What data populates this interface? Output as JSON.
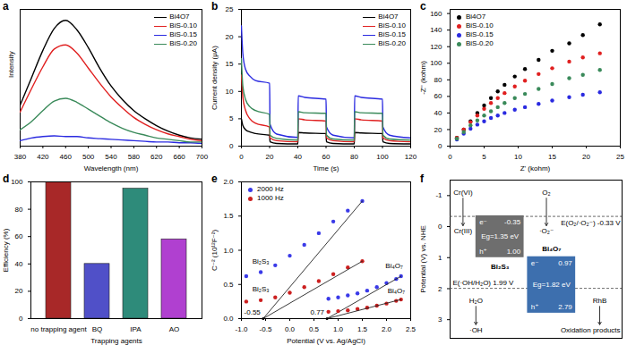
{
  "chart_data": [
    {
      "panel": "a",
      "type": "line",
      "x_label": "Wavelength (nm)",
      "y_label": "Intensity",
      "xlim": [
        380,
        700
      ],
      "xticks": [
        380,
        420,
        460,
        500,
        540,
        580,
        620,
        660,
        700
      ],
      "ylim": [
        0,
        100
      ],
      "tick_labels": "x",
      "legend": "top-right",
      "x": [
        380,
        400,
        420,
        440,
        460,
        480,
        500,
        520,
        540,
        560,
        580,
        600,
        620,
        640,
        660,
        680,
        700
      ],
      "series": [
        {
          "name": "Bi4O7",
          "color": "#000000",
          "values": [
            30,
            50,
            70,
            86,
            92,
            85,
            72,
            57,
            44,
            34,
            26,
            20,
            15,
            11,
            8,
            6,
            5
          ]
        },
        {
          "name": "BiS-0.10",
          "color": "#e02020",
          "values": [
            25,
            42,
            58,
            71,
            74,
            68,
            57,
            46,
            36,
            28,
            21,
            16,
            12,
            9,
            7,
            5,
            4
          ]
        },
        {
          "name": "BiS-0.15",
          "color": "#2a2ae0",
          "values": [
            4,
            6,
            7,
            7.5,
            7,
            7,
            6,
            5.5,
            5,
            4.5,
            4,
            3.5,
            3,
            3,
            2.5,
            2.5,
            2
          ]
        },
        {
          "name": "BiS-0.20",
          "color": "#3a8a5a",
          "values": [
            12,
            18,
            26,
            33,
            35,
            32,
            27,
            22,
            17,
            13,
            10,
            8,
            6,
            5,
            4,
            3,
            3
          ]
        }
      ]
    },
    {
      "panel": "b",
      "type": "line",
      "x_label": "Time (s)",
      "y_label": "Current density (μA)",
      "xlim": [
        0,
        120
      ],
      "xticks": [
        0,
        20,
        40,
        60,
        80,
        100,
        120
      ],
      "ylim": [
        0,
        25
      ],
      "yticks": [
        0,
        5,
        10,
        15,
        20,
        25
      ],
      "legend": "top-right",
      "x": [
        0,
        1,
        3,
        6,
        10,
        20,
        20.3,
        25,
        40,
        40.3,
        45,
        60,
        60.3,
        65,
        80,
        80.3,
        85,
        100,
        100.3,
        105,
        120
      ],
      "series": [
        {
          "name": "Bi4O7",
          "color": "#000000",
          "values": [
            5,
            3.8,
            3,
            2.6,
            2.3,
            2.0,
            0.8,
            0.5,
            0.4,
            2.5,
            2.4,
            2.3,
            0.8,
            0.5,
            0.4,
            2.5,
            2.4,
            2.3,
            0.8,
            0.5,
            0.4
          ]
        },
        {
          "name": "BiS-0.10",
          "color": "#e02020",
          "values": [
            13,
            9,
            6.5,
            5,
            4.2,
            3.5,
            1.5,
            1,
            0.8,
            5,
            4.8,
            4.6,
            1.5,
            1,
            0.8,
            5,
            4.8,
            4.6,
            1.5,
            1,
            0.8
          ]
        },
        {
          "name": "BiS-0.15",
          "color": "#2a2ae0",
          "values": [
            22,
            17,
            14,
            12.8,
            12,
            11.5,
            4,
            2.2,
            1.6,
            9.2,
            8.9,
            8.6,
            3.5,
            2,
            1.5,
            9.2,
            8.9,
            8.6,
            3.5,
            2,
            1.5
          ]
        },
        {
          "name": "BiS-0.20",
          "color": "#3a8a5a",
          "values": [
            16,
            11,
            8.5,
            7.2,
            6.5,
            5.8,
            2,
            1.4,
            1.1,
            6.3,
            6.1,
            6,
            2,
            1.3,
            1.1,
            6.3,
            6.1,
            6,
            2,
            1.3,
            1.1
          ]
        }
      ]
    },
    {
      "panel": "c",
      "type": "scatter",
      "x_label": "Z' (kohm)",
      "y_label": "-Z'' (kohm)",
      "xlim": [
        0,
        25
      ],
      "xticks": [
        0,
        5,
        10,
        15,
        20,
        25
      ],
      "ylim": [
        0,
        165
      ],
      "yticks": [
        0,
        20,
        40,
        60,
        80,
        100,
        120,
        140,
        160
      ],
      "legend": "top-left",
      "marker": "circle",
      "x": [
        1,
        2,
        3,
        4,
        5,
        6,
        7,
        8,
        9.5,
        11,
        13,
        15,
        17.5,
        19.5,
        22
      ],
      "series": [
        {
          "name": "Bi4O7",
          "color": "#000000",
          "values": [
            10,
            20,
            30,
            40,
            49,
            58,
            66,
            74,
            84,
            93,
            104,
            115,
            124,
            134,
            147
          ]
        },
        {
          "name": "BiS-0.10",
          "color": "#e02020",
          "values": [
            10,
            20,
            29,
            37,
            45,
            52,
            58,
            64,
            72,
            79,
            87,
            94,
            102,
            107,
            112
          ]
        },
        {
          "name": "BiS-0.15",
          "color": "#2a2ae0",
          "values": [
            8,
            15,
            21,
            26,
            30,
            34,
            37,
            40,
            44,
            47,
            51,
            55,
            59,
            62,
            65
          ]
        },
        {
          "name": "BiS-0.20",
          "color": "#3a8a5a",
          "values": [
            9,
            17,
            25,
            31,
            37,
            42,
            47,
            52,
            58,
            63,
            69,
            75,
            82,
            86,
            92
          ]
        }
      ]
    },
    {
      "panel": "d",
      "type": "bar",
      "x_label": "Trapping agents",
      "y_label": "Efficiency (%)",
      "categories": [
        "no trapping agent",
        "BQ",
        "IPA",
        "AO"
      ],
      "values": [
        100,
        40,
        95,
        58
      ],
      "colors": [
        "#a82828",
        "#5050c8",
        "#2e8b7a",
        "#b040d0"
      ],
      "ylim": [
        0,
        100
      ],
      "yticks": [
        0,
        20,
        40,
        60,
        80,
        100
      ]
    },
    {
      "panel": "e",
      "type": "scatter",
      "x_label": "Potential (V vs. Ag/AgCl)",
      "y_label": "C⁻² (10¹²F⁻²)",
      "xlim": [
        -1,
        2.5
      ],
      "xticks": [
        {
          "value": -1,
          "label": "-1.0"
        },
        -0.5,
        {
          "value": 0,
          "label": "0.0"
        },
        0.5,
        {
          "value": 1,
          "label": "1.0"
        },
        1.5,
        {
          "value": 2,
          "label": "2.0"
        },
        2.5
      ],
      "ylim": [
        0,
        2
      ],
      "yticks": [
        {
          "value": 0,
          "label": "0.0"
        },
        0.5,
        {
          "value": 1,
          "label": "1.0"
        },
        1.5,
        {
          "value": 2,
          "label": "2.0"
        }
      ],
      "legend": "top-left",
      "marker": "circle",
      "intercepts": [
        {
          "value": -0.55,
          "label": "-0.55"
        },
        {
          "value": 0.77,
          "label": "0.77"
        }
      ],
      "series": [
        {
          "name": "2000 Hz",
          "label": "Bi₂S₃",
          "color": "#3a3ae8",
          "x": [
            -0.9,
            -0.6,
            -0.3,
            0,
            0.3,
            0.6,
            0.9,
            1.2,
            1.5
          ],
          "values": [
            0.62,
            0.68,
            0.78,
            0.92,
            1.08,
            1.25,
            1.42,
            1.58,
            1.72
          ],
          "tangent": {
            "x": [
              -0.55,
              1.5
            ],
            "values": [
              0,
              1.72
            ]
          }
        },
        {
          "name": "1000 Hz",
          "label": "Bi₂S₃",
          "color": "#cc2020",
          "x": [
            -0.9,
            -0.6,
            -0.3,
            0,
            0.3,
            0.6,
            0.9,
            1.2,
            1.5
          ],
          "values": [
            0.25,
            0.27,
            0.31,
            0.38,
            0.46,
            0.55,
            0.65,
            0.75,
            0.84
          ],
          "tangent": {
            "x": [
              -0.55,
              1.5
            ],
            "values": [
              0,
              0.84
            ]
          }
        },
        {
          "name": "2000 Hz",
          "label": "Bi₄O₇",
          "color": "#3a3ae8",
          "x": [
            0.8,
            1.0,
            1.2,
            1.4,
            1.6,
            1.8,
            2.0,
            2.2,
            2.3
          ],
          "values": [
            0.29,
            0.31,
            0.34,
            0.37,
            0.41,
            0.46,
            0.52,
            0.58,
            0.62
          ],
          "tangent": {
            "x": [
              0.77,
              2.3
            ],
            "values": [
              0,
              0.62
            ]
          }
        },
        {
          "name": "1000 Hz",
          "label": "Bi₄O₇",
          "color": "#cc2020",
          "x": [
            0.8,
            1.0,
            1.2,
            1.4,
            1.6,
            1.8,
            2.0,
            2.2,
            2.3
          ],
          "values": [
            0.1,
            0.11,
            0.12,
            0.14,
            0.16,
            0.19,
            0.22,
            0.26,
            0.28
          ],
          "tangent": {
            "x": [
              0.77,
              2.3
            ],
            "values": [
              0,
              0.28
            ]
          }
        }
      ]
    },
    {
      "panel": "f",
      "type": "diagram",
      "y_label": "Potential (V) vs. NHE",
      "ylim": [
        -1.5,
        3.6
      ],
      "yticks": [
        -1,
        0,
        1,
        2,
        3
      ],
      "bands": [
        {
          "name": "Bi₂S₃",
          "cb": -0.35,
          "vb": 1.0,
          "cb_label": "-0.35",
          "vb_label": "1.00",
          "gap_label": "Eg=1.35 eV",
          "color": "#6e6e6e"
        },
        {
          "name": "Bi₄O₇",
          "cb": 0.97,
          "vb": 2.79,
          "cb_label": "0.97",
          "vb_label": "2.79",
          "gap_label": "Eg=1.82 eV",
          "color": "#3d6fae"
        }
      ],
      "carriers": {
        "electron": "e⁻",
        "hole": "h⁺"
      },
      "levels": [
        {
          "name": "E(O₂/·O₂⁻)",
          "value": -0.33,
          "label": "-0.33 V"
        },
        {
          "name": "E(·OH/H₂O)",
          "value": 1.99,
          "label": "1.99 V"
        }
      ],
      "reactions": [
        {
          "reactant": "Cr(VI)",
          "product": "Cr(III)",
          "band": "Bi₂S₃"
        },
        {
          "reactant": "O₂",
          "product": "·O₂⁻",
          "band": "Bi₂S₃"
        },
        {
          "reactant": "H₂O",
          "product": "·OH",
          "band": "Bi₄O₇"
        },
        {
          "reactant": "RhB",
          "product": "Oxidation products",
          "band": "Bi₄O₇"
        }
      ]
    }
  ]
}
